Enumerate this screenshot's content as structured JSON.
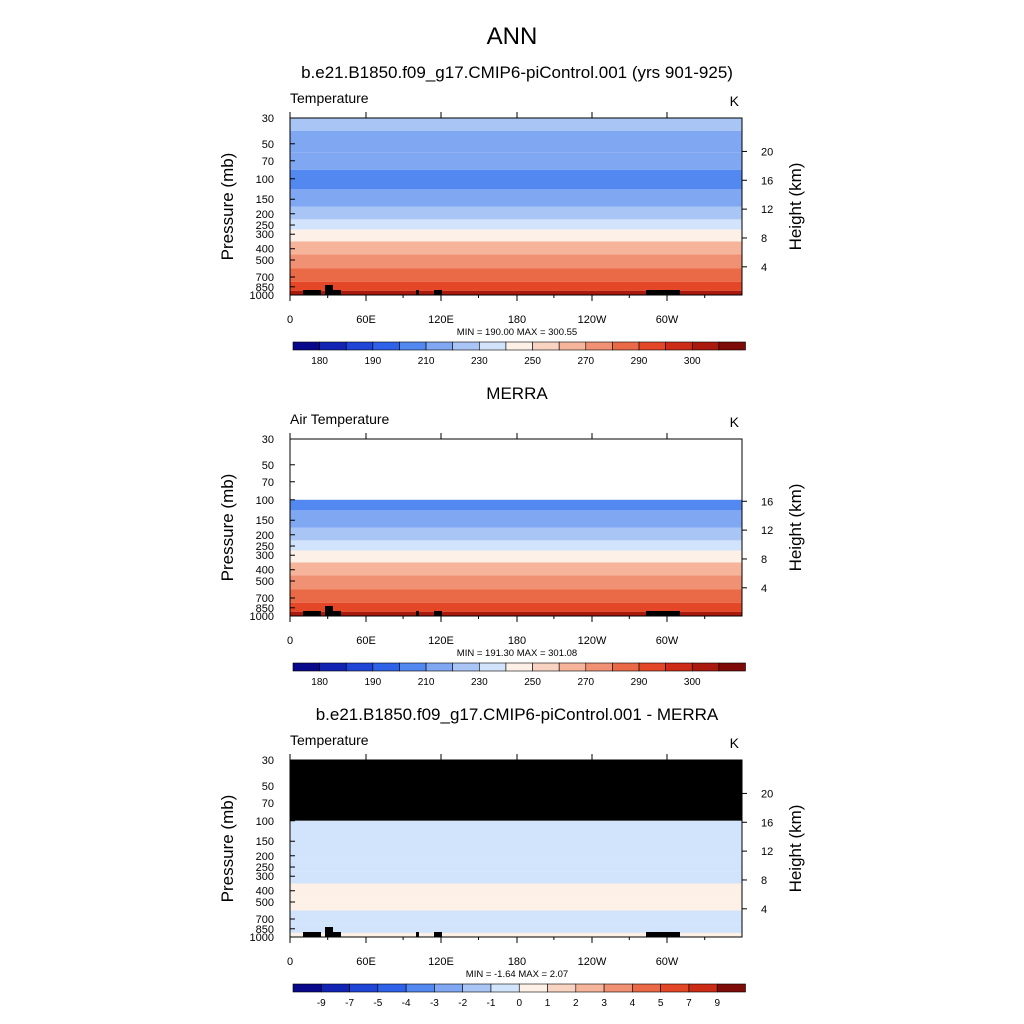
{
  "figure": {
    "title": "ANN"
  },
  "chart_data": [
    {
      "type": "heatmap",
      "title": "b.e21.B1850.f09_g17.CMIP6-piControl.001 (yrs 901-925)",
      "variable": "Temperature",
      "units": "K",
      "ylabel": "Pressure (mb)",
      "y2label": "Height (km)",
      "y_scale": "log",
      "ylim": [
        1000,
        30
      ],
      "y_ticks": [
        30,
        50,
        70,
        100,
        150,
        200,
        250,
        300,
        400,
        500,
        700,
        850,
        1000
      ],
      "y2_ticks": [
        4,
        8,
        12,
        16,
        20
      ],
      "x_tick_labels": [
        "0",
        "60E",
        "120E",
        "180",
        "120W",
        "60W"
      ],
      "stats": "MIN = 190.00  MAX = 300.55",
      "data_min": 190.0,
      "data_max": 300.55,
      "colorbar_labels": [
        "180",
        "190",
        "210",
        "230",
        "250",
        "270",
        "290",
        "300"
      ],
      "profile": [
        {
          "p": 30,
          "value": 212
        },
        {
          "p": 50,
          "value": 205
        },
        {
          "p": 70,
          "value": 200
        },
        {
          "p": 100,
          "value": 196
        },
        {
          "p": 150,
          "value": 203
        },
        {
          "p": 200,
          "value": 215
        },
        {
          "p": 250,
          "value": 226
        },
        {
          "p": 300,
          "value": 236
        },
        {
          "p": 400,
          "value": 250
        },
        {
          "p": 500,
          "value": 262
        },
        {
          "p": 700,
          "value": 278
        },
        {
          "p": 850,
          "value": 288
        },
        {
          "p": 1000,
          "value": 297
        }
      ],
      "white_above_p": null,
      "black_above_p": null
    },
    {
      "type": "heatmap",
      "title": "MERRA",
      "variable": "Air Temperature",
      "units": "K",
      "ylabel": "Pressure (mb)",
      "y2label": "Height (km)",
      "y_scale": "log",
      "ylim": [
        1000,
        30
      ],
      "y_ticks": [
        30,
        50,
        70,
        100,
        150,
        200,
        250,
        300,
        400,
        500,
        700,
        850,
        1000
      ],
      "y2_ticks": [
        4,
        8,
        12,
        16
      ],
      "x_tick_labels": [
        "0",
        "60E",
        "120E",
        "180",
        "120W",
        "60W"
      ],
      "stats": "MIN = 191.30  MAX = 301.08",
      "data_min": 191.3,
      "data_max": 301.08,
      "colorbar_labels": [
        "180",
        "190",
        "210",
        "230",
        "250",
        "270",
        "290",
        "300"
      ],
      "profile": [
        {
          "p": 100,
          "value": 196
        },
        {
          "p": 150,
          "value": 203
        },
        {
          "p": 200,
          "value": 215
        },
        {
          "p": 250,
          "value": 226
        },
        {
          "p": 300,
          "value": 236
        },
        {
          "p": 400,
          "value": 250
        },
        {
          "p": 500,
          "value": 262
        },
        {
          "p": 700,
          "value": 278
        },
        {
          "p": 850,
          "value": 288
        },
        {
          "p": 1000,
          "value": 298
        }
      ],
      "white_above_p": 100,
      "black_above_p": null
    },
    {
      "type": "heatmap",
      "title": "b.e21.B1850.f09_g17.CMIP6-piControl.001 - MERRA",
      "variable": "Temperature",
      "units": "K",
      "ylabel": "Pressure (mb)",
      "y2label": "Height (km)",
      "y_scale": "log",
      "ylim": [
        1000,
        30
      ],
      "y_ticks": [
        30,
        50,
        70,
        100,
        150,
        200,
        250,
        300,
        400,
        500,
        700,
        850,
        1000
      ],
      "y2_ticks": [
        4,
        8,
        12,
        16,
        20
      ],
      "x_tick_labels": [
        "0",
        "60E",
        "120E",
        "180",
        "120W",
        "60W"
      ],
      "stats": "MIN =  -1.64  MAX =   2.07",
      "data_min": -1.64,
      "data_max": 2.07,
      "colorbar_labels": [
        "-9",
        "-7",
        "-5",
        "-4",
        "-3",
        "-2",
        "-1",
        "0",
        "1",
        "2",
        "3",
        "4",
        "5",
        "7",
        "9"
      ],
      "profile": [
        {
          "p": 100,
          "value": -0.5
        },
        {
          "p": 150,
          "value": -0.4
        },
        {
          "p": 200,
          "value": -0.6
        },
        {
          "p": 250,
          "value": -0.8
        },
        {
          "p": 300,
          "value": -0.4
        },
        {
          "p": 400,
          "value": 0.4
        },
        {
          "p": 500,
          "value": 0.3
        },
        {
          "p": 700,
          "value": -0.3
        },
        {
          "p": 850,
          "value": -0.5
        },
        {
          "p": 1000,
          "value": 0.3
        }
      ],
      "white_above_p": null,
      "black_above_p": 100
    }
  ],
  "colormap": {
    "absolute": [
      "#08088a",
      "#1224b3",
      "#1f45d6",
      "#2f62e8",
      "#5288f0",
      "#80a8f2",
      "#a9c5f5",
      "#d2e4fb",
      "#fdf0e6",
      "#f9d3c2",
      "#f6b49a",
      "#f19174",
      "#ea6a48",
      "#e34727",
      "#cc2c16",
      "#a9190d",
      "#7e0b07"
    ],
    "absolute_bounds": [
      175,
      180,
      185,
      190,
      200,
      210,
      220,
      230,
      240,
      250,
      260,
      270,
      280,
      290,
      295,
      300
    ],
    "difference": [
      "#08088a",
      "#1224b3",
      "#1f45d6",
      "#2f62e8",
      "#5288f0",
      "#80a8f2",
      "#a9c5f5",
      "#d2e4fb",
      "#fdf0e6",
      "#f9d3c2",
      "#f6b49a",
      "#f19174",
      "#ea6a48",
      "#e34727",
      "#cc2c16",
      "#7e0b07"
    ],
    "difference_bounds": [
      -9,
      -7,
      -5,
      -4,
      -3,
      -2,
      -1,
      0,
      1,
      2,
      3,
      4,
      5,
      7,
      9
    ]
  }
}
